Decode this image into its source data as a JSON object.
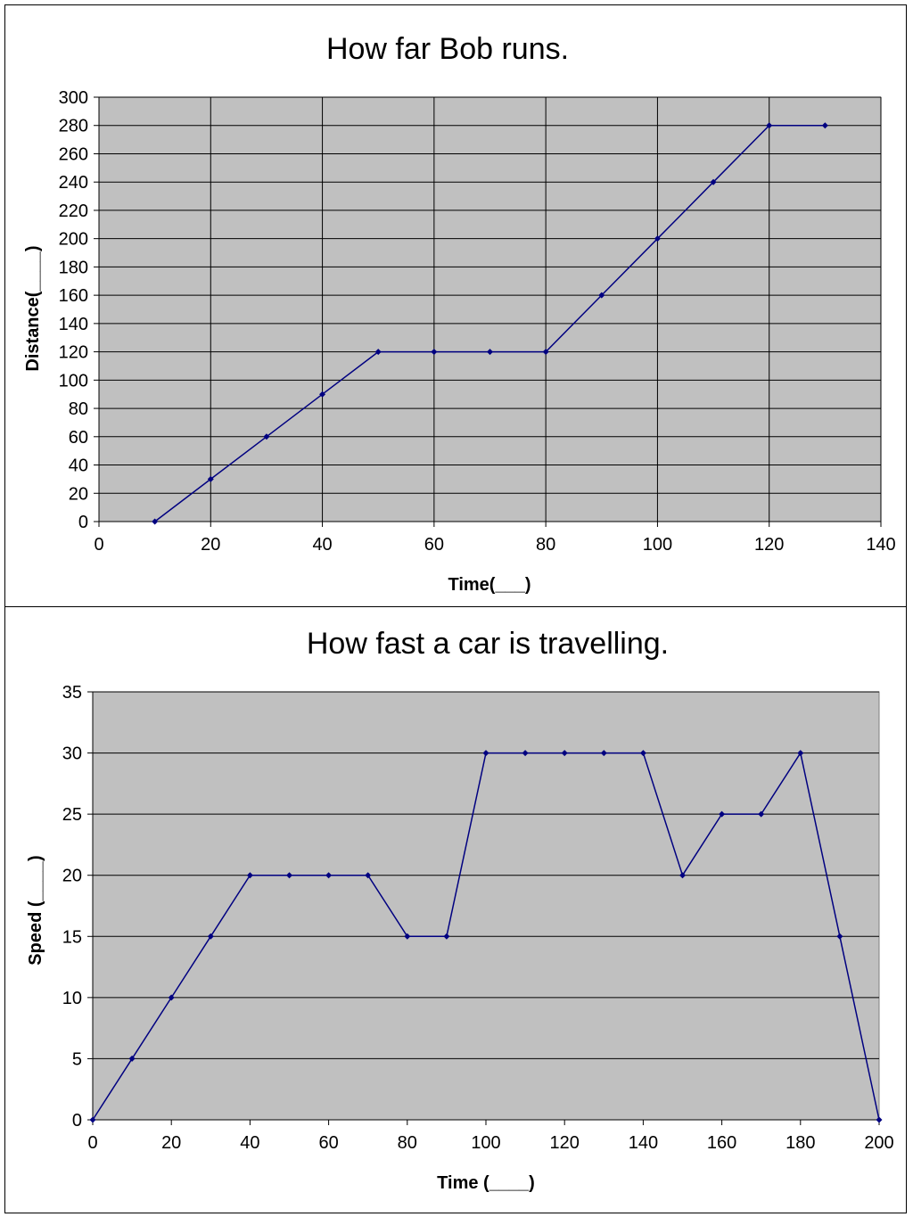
{
  "chart_data": [
    {
      "type": "line",
      "title": "How far Bob runs.",
      "xlabel": "Time(___)",
      "ylabel": "Distance(____)",
      "xlim": [
        0,
        140
      ],
      "ylim": [
        0,
        300
      ],
      "xticks": [
        0,
        20,
        40,
        60,
        80,
        100,
        120,
        140
      ],
      "yticks": [
        0,
        20,
        40,
        60,
        80,
        100,
        120,
        140,
        160,
        180,
        200,
        220,
        240,
        260,
        280,
        300
      ],
      "grid": "both",
      "plot_background": "#c0c0c0",
      "line_color": "#000080",
      "x": [
        10,
        20,
        30,
        40,
        50,
        60,
        70,
        80,
        90,
        100,
        110,
        120,
        130
      ],
      "y": [
        0,
        30,
        60,
        90,
        120,
        120,
        120,
        120,
        160,
        200,
        240,
        280,
        280
      ]
    },
    {
      "type": "line",
      "title": "How fast a car is travelling.",
      "xlabel": "Time (____)",
      "ylabel": "Speed (____)",
      "xlim": [
        0,
        200
      ],
      "ylim": [
        0,
        35
      ],
      "xticks": [
        0,
        20,
        40,
        60,
        80,
        100,
        120,
        140,
        160,
        180,
        200
      ],
      "yticks": [
        0,
        5,
        10,
        15,
        20,
        25,
        30,
        35
      ],
      "grid": "horizontal",
      "plot_background": "#c0c0c0",
      "line_color": "#000080",
      "x": [
        0,
        10,
        20,
        30,
        40,
        50,
        60,
        70,
        80,
        90,
        100,
        110,
        120,
        130,
        140,
        150,
        160,
        170,
        180,
        190,
        200
      ],
      "y": [
        0,
        5,
        10,
        15,
        20,
        20,
        20,
        20,
        15,
        15,
        30,
        30,
        30,
        30,
        30,
        20,
        25,
        25,
        30,
        15,
        0
      ]
    }
  ]
}
